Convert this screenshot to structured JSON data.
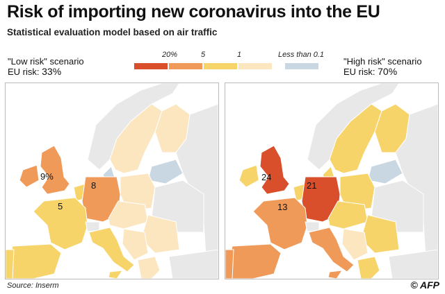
{
  "title": "Risk of importing new coronavirus into the EU",
  "subtitle": "Statistical evaluation model based on air traffic",
  "legend": {
    "items": [
      {
        "label": "20%",
        "color": "#d94f2b"
      },
      {
        "label": "5",
        "color": "#f09a5a"
      },
      {
        "label": "1",
        "color": "#f7d46a"
      },
      {
        "label": "",
        "color": "#fbe6bf"
      },
      {
        "label": "Less than 0.1",
        "color": "#c9d7e2"
      }
    ]
  },
  "scenarios": {
    "low": {
      "label": "\"Low risk\" scenario",
      "risk_prefix": "EU risk: ",
      "risk_value": "33%"
    },
    "high": {
      "label": "\"High risk\" scenario",
      "risk_prefix": "EU risk: ",
      "risk_value": "70%"
    }
  },
  "maps": {
    "low": {
      "values": [
        {
          "country": "United Kingdom",
          "text": "9%"
        },
        {
          "country": "Germany",
          "text": "8"
        },
        {
          "country": "France",
          "text": "5"
        }
      ]
    },
    "high": {
      "values": [
        {
          "country": "United Kingdom",
          "text": "24"
        },
        {
          "country": "Germany",
          "text": "21"
        },
        {
          "country": "France",
          "text": "13"
        }
      ]
    }
  },
  "source": "Source: Inserm",
  "credit": "© AFP",
  "colors": {
    "sea": "#ffffff",
    "non_eu": "#e8e8e8",
    "border": "#ffffff"
  }
}
